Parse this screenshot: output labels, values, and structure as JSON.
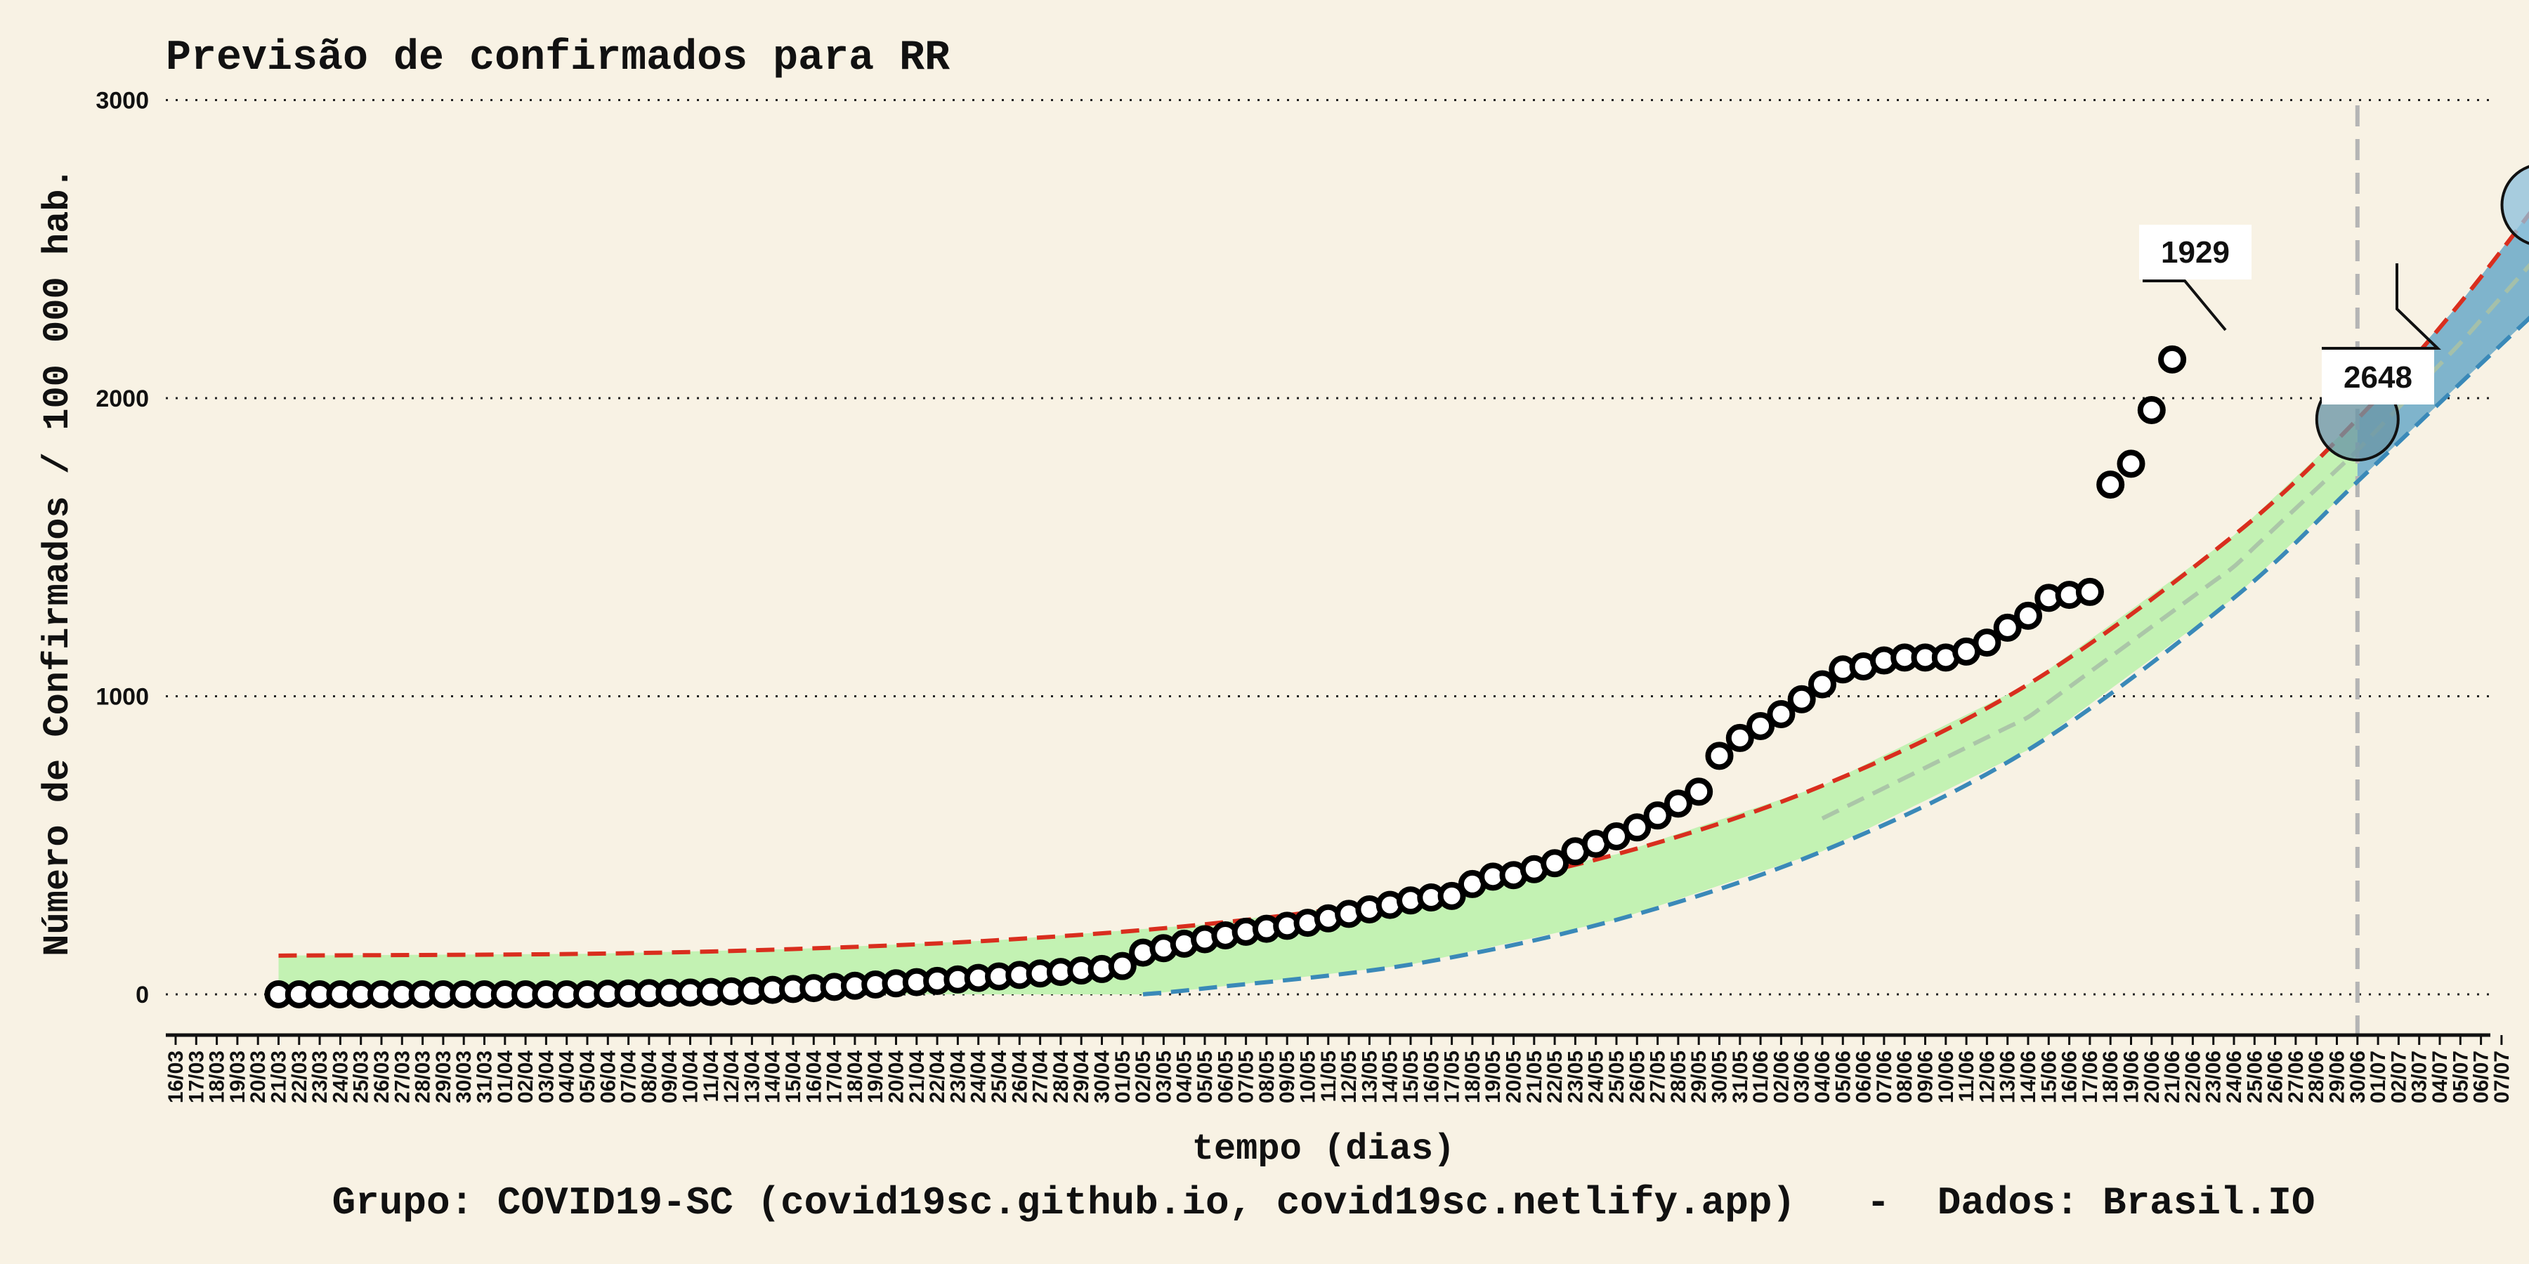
{
  "chart_data": {
    "type": "scatter",
    "title": "Previsão de confirmados para RR",
    "xlabel": "tempo (dias)",
    "ylabel": "Número de Confirmados / 100 000 hab.",
    "caption": "Grupo: COVID19-SC (covid19sc.github.io, covid19sc.netlify.app)   -  Dados: Brasil.IO",
    "ylim": [
      -120,
      3200
    ],
    "yticks": [
      0,
      1000,
      2000,
      3000
    ],
    "grid": "horizontal dotted",
    "x_categories": [
      "16/03",
      "17/03",
      "18/03",
      "19/03",
      "20/03",
      "21/03",
      "22/03",
      "23/03",
      "24/03",
      "25/03",
      "26/03",
      "27/03",
      "28/03",
      "29/03",
      "30/03",
      "31/03",
      "01/04",
      "02/04",
      "03/04",
      "04/04",
      "05/04",
      "06/04",
      "07/04",
      "08/04",
      "09/04",
      "10/04",
      "11/04",
      "12/04",
      "13/04",
      "14/04",
      "15/04",
      "16/04",
      "17/04",
      "18/04",
      "19/04",
      "20/04",
      "21/04",
      "22/04",
      "23/04",
      "24/04",
      "25/04",
      "26/04",
      "27/04",
      "28/04",
      "29/04",
      "30/04",
      "01/05",
      "02/05",
      "03/05",
      "04/05",
      "05/05",
      "06/05",
      "07/05",
      "08/05",
      "09/05",
      "10/05",
      "11/05",
      "12/05",
      "13/05",
      "14/05",
      "15/05",
      "16/05",
      "17/05",
      "18/05",
      "19/05",
      "20/05",
      "21/05",
      "22/05",
      "23/05",
      "24/05",
      "25/05",
      "26/05",
      "27/05",
      "28/05",
      "29/05",
      "30/05",
      "31/05",
      "01/06",
      "02/06",
      "03/06",
      "04/06",
      "05/06",
      "06/06",
      "07/06",
      "08/06",
      "09/06",
      "10/06",
      "11/06",
      "12/06",
      "13/06",
      "14/06",
      "15/06",
      "16/06",
      "17/06",
      "18/06",
      "19/06",
      "20/06",
      "21/06",
      "22/06",
      "23/06",
      "24/06",
      "25/06",
      "26/06",
      "27/06",
      "28/06",
      "29/06",
      "30/06",
      "01/07",
      "02/07",
      "03/07",
      "04/07",
      "05/07",
      "06/07",
      "07/07"
    ],
    "observed": {
      "start_index": 5,
      "values": [
        0,
        0,
        0,
        0,
        0,
        0,
        0,
        0,
        0,
        0,
        0,
        0,
        0,
        0,
        0,
        0,
        2,
        3,
        4,
        5,
        6,
        8,
        10,
        12,
        15,
        18,
        21,
        25,
        29,
        33,
        37,
        41,
        45,
        50,
        55,
        60,
        65,
        70,
        75,
        80,
        85,
        95,
        140,
        155,
        170,
        185,
        198,
        210,
        220,
        230,
        240,
        255,
        270,
        285,
        300,
        315,
        325,
        330,
        370,
        395,
        400,
        420,
        440,
        480,
        505,
        530,
        560,
        600,
        640,
        680,
        800,
        860,
        900,
        940,
        990,
        1040,
        1090,
        1100,
        1120,
        1130,
        1130,
        1130,
        1150,
        1180,
        1230,
        1270,
        1330,
        1340,
        1350,
        1710,
        1780,
        1960,
        2130
      ]
    },
    "forecast": {
      "upper": {
        "color": "#d92e1e",
        "points": [
          [
            5,
            130
          ],
          [
            20,
            136
          ],
          [
            30,
            152
          ],
          [
            40,
            182
          ],
          [
            50,
            235
          ],
          [
            60,
            325
          ],
          [
            70,
            470
          ],
          [
            80,
            700
          ],
          [
            90,
            1040
          ],
          [
            100,
            1540
          ],
          [
            106,
            1930
          ],
          [
            111,
            2320
          ],
          [
            117,
            2860
          ]
        ]
      },
      "lower": {
        "color": "#3a89b8",
        "points": [
          [
            47,
            0
          ],
          [
            50,
            20
          ],
          [
            60,
            100
          ],
          [
            70,
            250
          ],
          [
            80,
            480
          ],
          [
            90,
            820
          ],
          [
            100,
            1330
          ],
          [
            106,
            1720
          ],
          [
            111,
            2050
          ],
          [
            117,
            2440
          ]
        ]
      },
      "fill_color": "#c3f2b3",
      "forecast_fill_color": "#7fb4cc"
    },
    "markers": [
      {
        "index": 106,
        "value": 1929,
        "label": "1929",
        "color": "#6a96a7"
      },
      {
        "index": 115,
        "value": 2648,
        "label": "2648",
        "color": "#8fc1dd"
      }
    ]
  }
}
